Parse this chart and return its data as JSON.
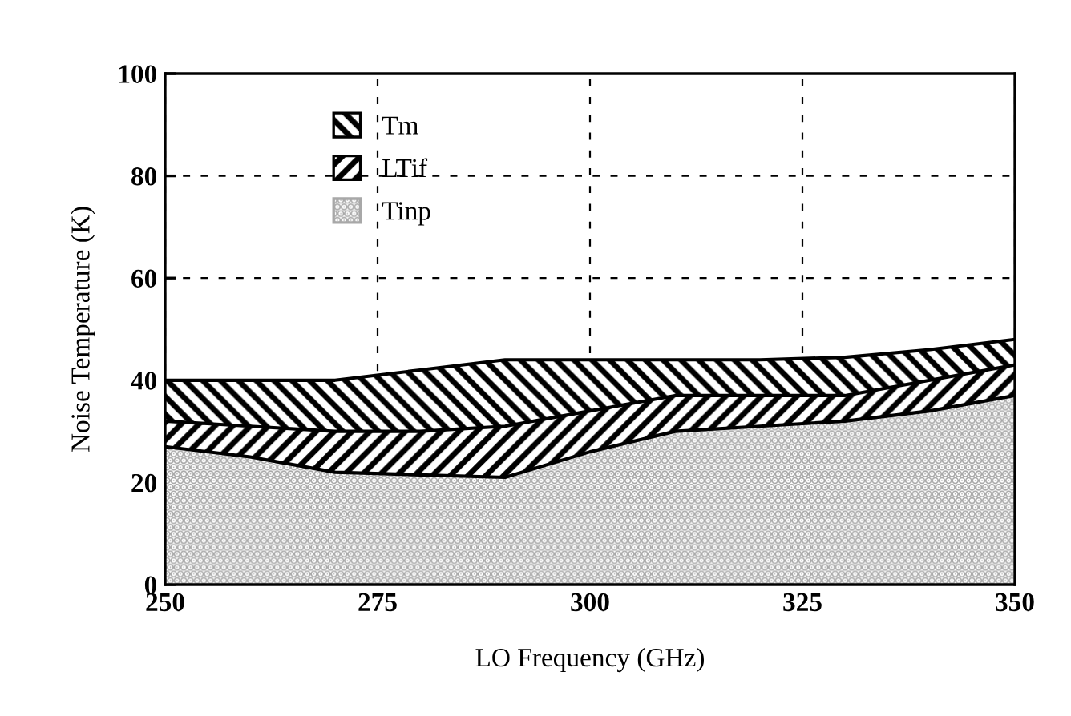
{
  "chart_data": {
    "type": "area",
    "stacked": true,
    "xlabel": "LO Frequency (GHz)",
    "ylabel": "Noise Temperature (K)",
    "x": [
      250,
      260,
      270,
      280,
      290,
      300,
      310,
      320,
      330,
      340,
      350
    ],
    "series": [
      {
        "name": "Tinp",
        "color": "#a8a8a8",
        "values": [
          27,
          25,
          22,
          21.5,
          21,
          26,
          30,
          31,
          32,
          34,
          37
        ]
      },
      {
        "name": "LTif",
        "color": "#000000",
        "values": [
          5,
          6,
          8,
          8.5,
          10,
          8,
          7,
          6,
          5,
          6,
          6
        ]
      },
      {
        "name": "Tm",
        "color": "#000000",
        "values": [
          8,
          9,
          10,
          12,
          13,
          10,
          7,
          7,
          7.5,
          6,
          5
        ]
      }
    ],
    "xlim": [
      250,
      350
    ],
    "xticks": [
      250,
      275,
      300,
      325,
      350
    ],
    "ylim": [
      0,
      100
    ],
    "yticks": [
      0,
      20,
      40,
      60,
      80,
      100
    ],
    "grid": true,
    "legend": "top left"
  }
}
